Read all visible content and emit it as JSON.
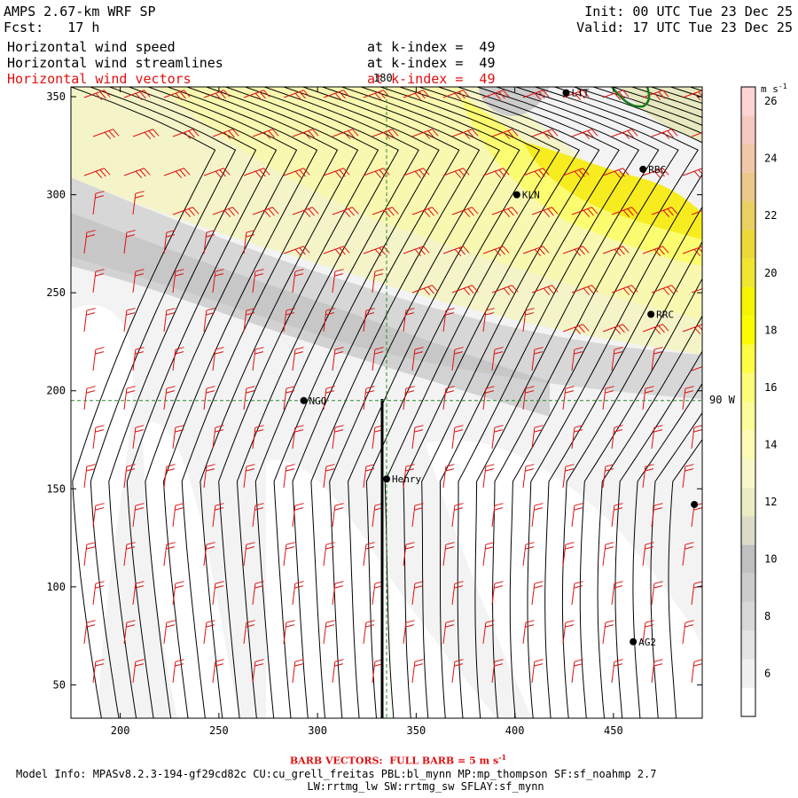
{
  "header": {
    "title": "AMPS 2.67-km WRF SP",
    "forecast": "Fcst:   17 h",
    "init": "Init: 00 UTC Tue 23 Dec 25",
    "valid": "Valid: 17 UTC Tue 23 Dec 25",
    "fields": [
      {
        "name": "Horizontal wind speed",
        "level": "at k-index =  49"
      },
      {
        "name": "Horizontal wind streamlines",
        "level": "at k-index =  49"
      },
      {
        "name": "Horizontal wind vectors",
        "level": "at k-index =  49"
      }
    ]
  },
  "colors": {
    "vector_text": "#e01010",
    "streamline": "#000000",
    "barb": "#e01010",
    "coast": "#1a7a1a",
    "crosshair": "#2a8a2a"
  },
  "chart_data": {
    "type": "heatmap",
    "xlim": [
      175,
      495
    ],
    "ylim": [
      33,
      355
    ],
    "x_ticks": [
      200,
      250,
      300,
      350,
      400,
      450
    ],
    "y_ticks": [
      50,
      100,
      150,
      200,
      250,
      300,
      350
    ],
    "colorbar": {
      "unit": "m s",
      "unit_exp": "-1",
      "levels": [
        5,
        6,
        7,
        8,
        9,
        10,
        11,
        12,
        13,
        14,
        15,
        16,
        17,
        18,
        19,
        20,
        21,
        22,
        23,
        24,
        25,
        26,
        27
      ],
      "colors": [
        "#ffffff",
        "#f0f0f0",
        "#e4e4e4",
        "#d8d8d8",
        "#cccccc",
        "#c0c0c0",
        "#dcdcc8",
        "#ececc4",
        "#f7f7c8",
        "#fbfbb4",
        "#fcfc98",
        "#fcfc78",
        "#fcfc44",
        "#fcfc00",
        "#f5f500",
        "#f0e630",
        "#ecd838",
        "#ead060",
        "#ecc888",
        "#f0c8a8",
        "#f6c8c0",
        "#fcd4d4"
      ],
      "tick_labels": [
        "6",
        "8",
        "10",
        "12",
        "14",
        "16",
        "18",
        "20",
        "22",
        "24",
        "26"
      ]
    },
    "crosshair": {
      "x": 335,
      "y": 195,
      "x_label": "180",
      "y_label": "90 W"
    },
    "stations": [
      {
        "name": "NGO",
        "x": 293,
        "y": 195
      },
      {
        "name": "Henry",
        "x": 335,
        "y": 155
      },
      {
        "name": "KLN",
        "x": 401,
        "y": 300
      },
      {
        "name": "RBC",
        "x": 465,
        "y": 313
      },
      {
        "name": "RRC",
        "x": 469,
        "y": 239
      },
      {
        "name": "AG2",
        "x": 460,
        "y": 72
      },
      {
        "name": "LTT",
        "x": 426,
        "y": 352
      },
      {
        "name": "",
        "x": 491,
        "y": 142
      }
    ]
  },
  "footer": {
    "barb_note_prefix": "BARB VECTORS:  FULL BARB = 5 m s",
    "barb_note_exp": "-1",
    "model_info": "Model Info: MPASv8.2.3-194-gf29cd82c CU:cu_grell_freitas PBL:bl_mynn MP:mp_thompson SF:sf_noahmp 2.7",
    "model_info2": "LW:rrtmg_lw SW:rrtmg_sw SFLAY:sf_mynn"
  }
}
